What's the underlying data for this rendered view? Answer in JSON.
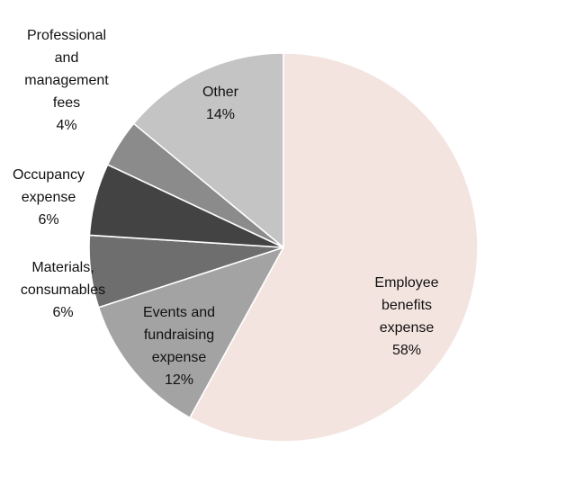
{
  "chart_data": {
    "type": "pie",
    "title": "",
    "start_angle_deg": 0,
    "direction": "clockwise",
    "slices": [
      {
        "name": "Employee benefits expense",
        "value": 58,
        "percent_label": "58%",
        "label_lines": [
          "Employee",
          "benefits",
          "expense",
          "58%"
        ],
        "color": "#f4e4df",
        "label_position": "inside"
      },
      {
        "name": "Events and fundraising expense",
        "value": 12,
        "percent_label": "12%",
        "label_lines": [
          "Events and",
          "fundraising",
          "expense",
          "12%"
        ],
        "color": "#a3a3a3",
        "label_position": "inside"
      },
      {
        "name": "Materials, consumables",
        "value": 6,
        "percent_label": "6%",
        "label_lines": [
          "Materials,",
          "consumables",
          "6%"
        ],
        "color": "#6e6e6e",
        "label_position": "outside"
      },
      {
        "name": "Occupancy expense",
        "value": 6,
        "percent_label": "6%",
        "label_lines": [
          "Occupancy",
          "expense",
          "6%"
        ],
        "color": "#434343",
        "label_position": "outside"
      },
      {
        "name": "Professional and management fees",
        "value": 4,
        "percent_label": "4%",
        "label_lines": [
          "Professional",
          "and",
          "management",
          "fees",
          "4%"
        ],
        "color": "#8b8b8b",
        "label_position": "outside"
      },
      {
        "name": "Other",
        "value": 14,
        "percent_label": "14%",
        "label_lines": [
          "Other",
          "14%"
        ],
        "color": "#c4c4c4",
        "label_position": "inside"
      }
    ]
  }
}
